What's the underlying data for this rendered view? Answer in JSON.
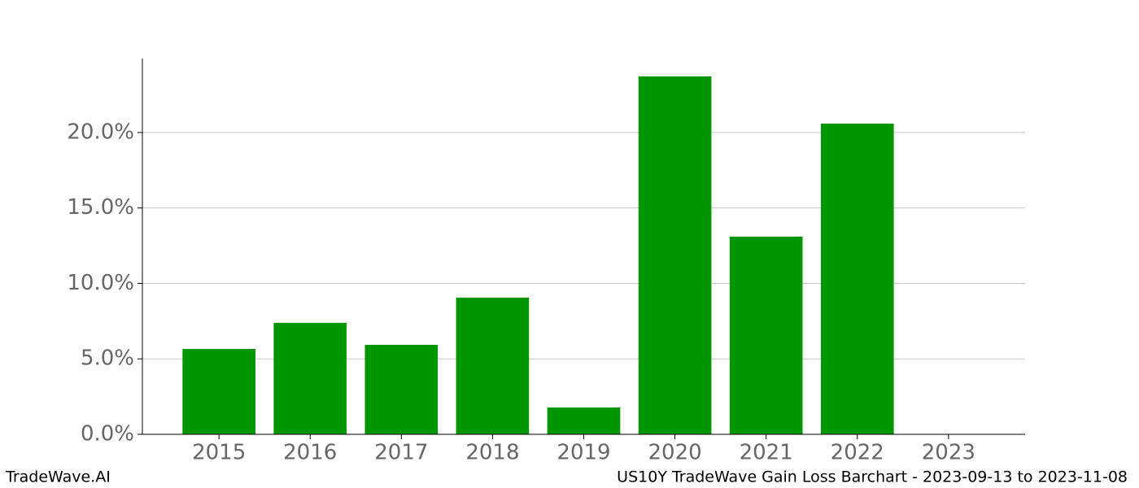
{
  "chart_data": {
    "type": "bar",
    "title": "US10Y TradeWave Gain Loss Barchart - 2023-09-13 to 2023-11-08",
    "source": "TradeWave.AI",
    "categories": [
      "2015",
      "2016",
      "2017",
      "2018",
      "2019",
      "2020",
      "2021",
      "2022",
      "2023"
    ],
    "values": [
      5.66,
      7.39,
      5.93,
      9.06,
      1.78,
      23.72,
      13.1,
      20.59,
      0
    ],
    "color": "#009600",
    "ylim": [
      0,
      24.9
    ],
    "yticks": [
      {
        "value": 0,
        "label": "0.0%"
      },
      {
        "value": 5,
        "label": "5.0%"
      },
      {
        "value": 10,
        "label": "10.0%"
      },
      {
        "value": 15,
        "label": "15.0%"
      },
      {
        "value": 20,
        "label": "20.0%"
      }
    ],
    "grid": true
  }
}
